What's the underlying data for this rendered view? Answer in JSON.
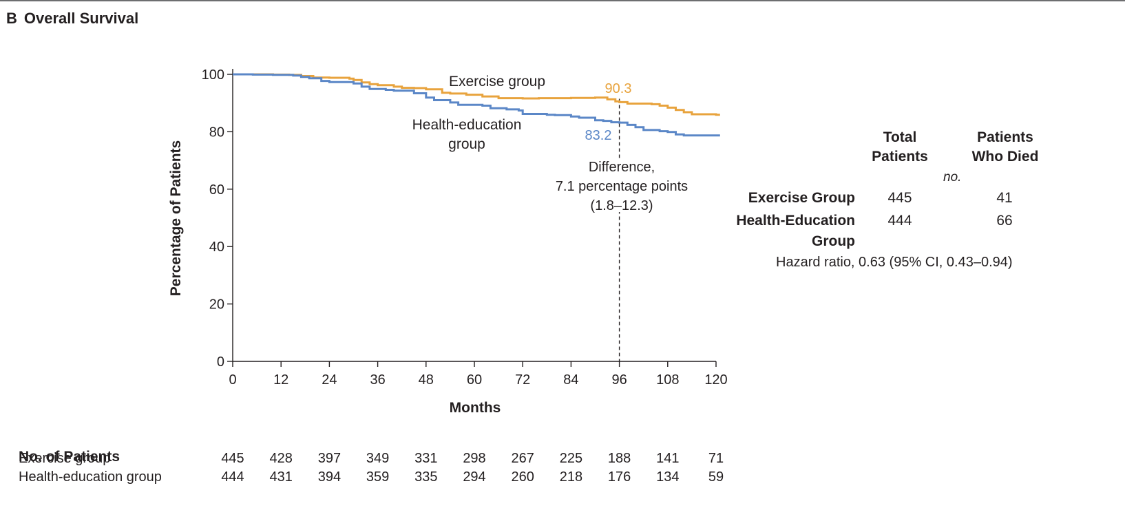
{
  "figure": {
    "panel_letter": "B",
    "panel_title": "Overall Survival"
  },
  "chart_data": {
    "type": "line",
    "subtype": "kaplan-meier",
    "xlabel": "Months",
    "ylabel": "Percentage of Patients",
    "xlim": [
      0,
      120
    ],
    "ylim": [
      0,
      100
    ],
    "xticks": [
      0,
      12,
      24,
      36,
      48,
      60,
      72,
      84,
      96,
      108,
      120
    ],
    "yticks": [
      0,
      20,
      40,
      60,
      80,
      100
    ],
    "grid": false,
    "series": [
      {
        "name": "Exercise group",
        "color": "#e8a33d",
        "points": [
          [
            0,
            100
          ],
          [
            7,
            100
          ],
          [
            10,
            99.9
          ],
          [
            14,
            99.8
          ],
          [
            17,
            99.4
          ],
          [
            20,
            98.9
          ],
          [
            24,
            98.8
          ],
          [
            29,
            98.5
          ],
          [
            30,
            98.0
          ],
          [
            32,
            97.2
          ],
          [
            34,
            96.6
          ],
          [
            36,
            96.2
          ],
          [
            40,
            95.7
          ],
          [
            42,
            95.3
          ],
          [
            45,
            95.2
          ],
          [
            48,
            94.8
          ],
          [
            52,
            93.6
          ],
          [
            54,
            93.3
          ],
          [
            58,
            92.9
          ],
          [
            62,
            92.3
          ],
          [
            66,
            91.7
          ],
          [
            72,
            91.6
          ],
          [
            76,
            91.7
          ],
          [
            84,
            91.8
          ],
          [
            90,
            91.9
          ],
          [
            93,
            91.3
          ],
          [
            95,
            90.6
          ],
          [
            96,
            90.3
          ],
          [
            98,
            89.8
          ],
          [
            104,
            89.6
          ],
          [
            106,
            89.1
          ],
          [
            108,
            88.4
          ],
          [
            110,
            87.6
          ],
          [
            112,
            86.8
          ],
          [
            114,
            86.1
          ],
          [
            120,
            85.9
          ],
          [
            121,
            85.9
          ]
        ]
      },
      {
        "name": "Health-education group",
        "color": "#5b87c7",
        "points": [
          [
            0,
            100
          ],
          [
            5,
            99.9
          ],
          [
            10,
            99.8
          ],
          [
            15,
            99.6
          ],
          [
            17,
            99.1
          ],
          [
            19,
            98.6
          ],
          [
            22,
            97.7
          ],
          [
            24,
            97.3
          ],
          [
            30,
            96.8
          ],
          [
            32,
            95.7
          ],
          [
            34,
            94.9
          ],
          [
            38,
            94.6
          ],
          [
            40,
            94.3
          ],
          [
            45,
            93.4
          ],
          [
            48,
            91.9
          ],
          [
            50,
            91.0
          ],
          [
            54,
            90.2
          ],
          [
            56,
            89.4
          ],
          [
            62,
            89.1
          ],
          [
            64,
            88.2
          ],
          [
            68,
            87.8
          ],
          [
            71,
            87.4
          ],
          [
            72,
            86.2
          ],
          [
            78,
            85.9
          ],
          [
            80,
            85.8
          ],
          [
            84,
            85.3
          ],
          [
            86,
            84.9
          ],
          [
            90,
            84.0
          ],
          [
            92,
            83.8
          ],
          [
            94,
            83.3
          ],
          [
            96,
            83.2
          ],
          [
            98,
            82.4
          ],
          [
            100,
            81.6
          ],
          [
            102,
            80.6
          ],
          [
            106,
            80.2
          ],
          [
            108,
            79.9
          ],
          [
            110,
            79.1
          ],
          [
            112,
            78.7
          ],
          [
            120,
            78.7
          ],
          [
            121,
            78.7
          ]
        ]
      }
    ],
    "series_labels": [
      {
        "series": 0,
        "text": "Exercise group"
      },
      {
        "series": 1,
        "text": [
          "Health-education",
          "group"
        ]
      }
    ],
    "annotations": {
      "reference_x": 96,
      "exercise_value": "90.3",
      "health_value": "83.2",
      "difference_lines": [
        "Difference,",
        "7.1 percentage points",
        "(1.8–12.3)"
      ]
    }
  },
  "summary_table": {
    "col_headers": [
      [
        "Total",
        "Patients"
      ],
      [
        "Patients",
        "Who Died"
      ]
    ],
    "unit": "no.",
    "rows": [
      {
        "label": [
          "Exercise Group"
        ],
        "total": "445",
        "died": "41"
      },
      {
        "label": [
          "Health-Education",
          "Group"
        ],
        "total": "444",
        "died": "66"
      }
    ],
    "hazard_ratio": "Hazard ratio, 0.63 (95% CI, 0.43–0.94)"
  },
  "patients_at_risk": {
    "title": "No. of Patients",
    "rows": [
      {
        "label": "Exercise group",
        "values": [
          445,
          428,
          397,
          349,
          331,
          298,
          267,
          225,
          188,
          141,
          71
        ]
      },
      {
        "label": "Health-education group",
        "values": [
          444,
          431,
          394,
          359,
          335,
          294,
          260,
          218,
          176,
          134,
          59
        ]
      }
    ]
  }
}
